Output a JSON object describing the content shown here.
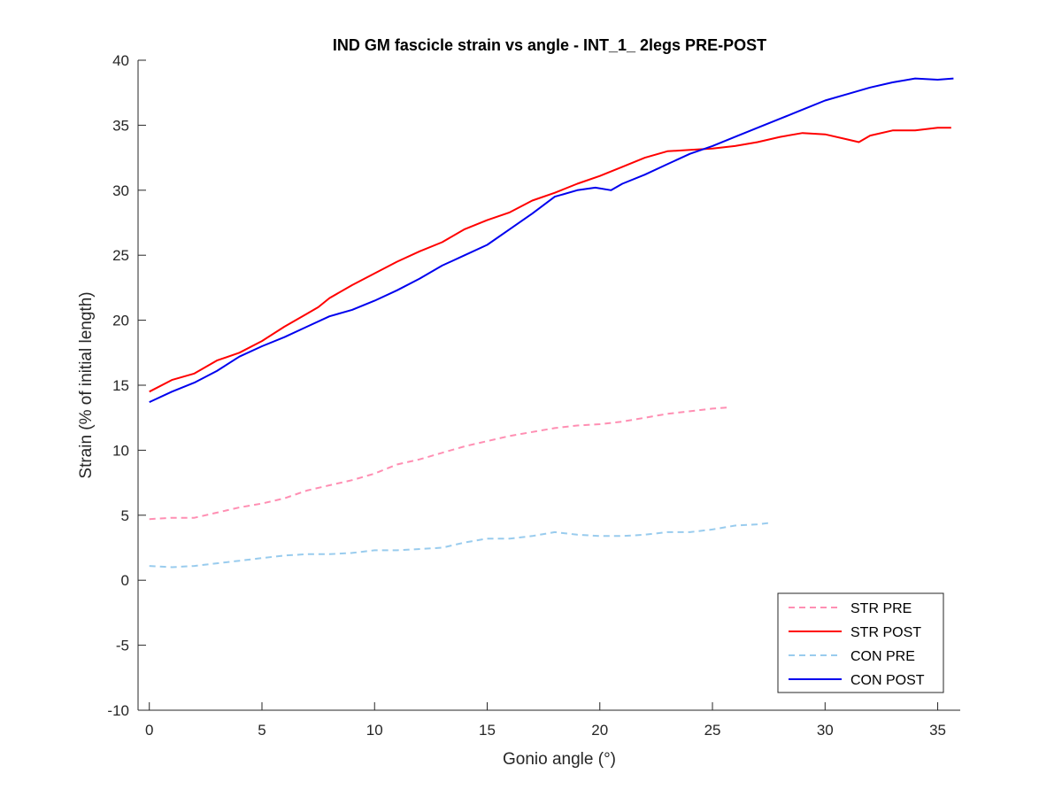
{
  "chart_data": {
    "type": "line",
    "title": "IND GM fascicle strain vs angle - INT_1_ 2legs PRE-POST",
    "xlabel": "Gonio angle (°)",
    "ylabel": "Strain (% of initial length)",
    "xlim": [
      -0.5,
      36
    ],
    "ylim": [
      -10,
      40
    ],
    "xticks": [
      0,
      5,
      10,
      15,
      20,
      25,
      30,
      35
    ],
    "yticks": [
      -10,
      -5,
      0,
      5,
      10,
      15,
      20,
      25,
      30,
      35,
      40
    ],
    "grid": false,
    "legend_position": "bottom-right",
    "series": [
      {
        "name": "STR PRE",
        "color": "#ff8fb3",
        "dash": "dashed",
        "x": [
          0,
          1,
          2,
          3,
          4,
          5,
          6,
          7,
          8,
          9,
          10,
          11,
          12,
          13,
          14,
          15,
          16,
          17,
          18,
          19,
          20,
          21,
          22,
          23,
          24,
          25,
          25.8
        ],
        "y": [
          4.7,
          4.8,
          4.8,
          5.2,
          5.6,
          5.9,
          6.3,
          6.9,
          7.3,
          7.7,
          8.2,
          8.9,
          9.3,
          9.8,
          10.3,
          10.7,
          11.1,
          11.4,
          11.7,
          11.9,
          12.0,
          12.2,
          12.5,
          12.8,
          13.0,
          13.2,
          13.3
        ]
      },
      {
        "name": "STR POST",
        "color": "#ff0000",
        "dash": "solid",
        "x": [
          0,
          1,
          2,
          3,
          4,
          5,
          6,
          7,
          7.5,
          8,
          9,
          10,
          11,
          12,
          13,
          14,
          15,
          16,
          17,
          18,
          19,
          20,
          21,
          22,
          23,
          24,
          25,
          26,
          27,
          28,
          29,
          30,
          31,
          31.5,
          32,
          33,
          34,
          35,
          35.6
        ],
        "y": [
          14.5,
          15.4,
          15.9,
          16.9,
          17.5,
          18.4,
          19.5,
          20.5,
          21.0,
          21.7,
          22.7,
          23.6,
          24.5,
          25.3,
          26.0,
          27.0,
          27.7,
          28.3,
          29.2,
          29.8,
          30.5,
          31.1,
          31.8,
          32.5,
          33.0,
          33.1,
          33.2,
          33.4,
          33.7,
          34.1,
          34.4,
          34.3,
          33.9,
          33.7,
          34.2,
          34.6,
          34.6,
          34.8,
          34.8
        ]
      },
      {
        "name": "CON PRE",
        "color": "#99ccee",
        "dash": "dashed",
        "x": [
          0,
          1,
          2,
          3,
          4,
          5,
          6,
          7,
          8,
          9,
          10,
          11,
          12,
          13,
          14,
          15,
          16,
          17,
          18,
          19,
          20,
          21,
          22,
          23,
          24,
          25,
          26,
          27,
          27.5
        ],
        "y": [
          1.1,
          1.0,
          1.1,
          1.3,
          1.5,
          1.7,
          1.9,
          2.0,
          2.0,
          2.1,
          2.3,
          2.3,
          2.4,
          2.5,
          2.9,
          3.2,
          3.2,
          3.4,
          3.7,
          3.5,
          3.4,
          3.4,
          3.5,
          3.7,
          3.7,
          3.9,
          4.2,
          4.3,
          4.4
        ]
      },
      {
        "name": "CON POST",
        "color": "#0000ee",
        "dash": "solid",
        "x": [
          0,
          1,
          2,
          3,
          4,
          5,
          6,
          7,
          8,
          9,
          10,
          11,
          12,
          13,
          14,
          15,
          16,
          17,
          18,
          19,
          19.8,
          20.5,
          21,
          22,
          23,
          24,
          25,
          26,
          27,
          28,
          29,
          30,
          31,
          32,
          33,
          34,
          35,
          35.7
        ],
        "y": [
          13.7,
          14.5,
          15.2,
          16.1,
          17.2,
          18.0,
          18.7,
          19.5,
          20.3,
          20.8,
          21.5,
          22.3,
          23.2,
          24.2,
          25.0,
          25.8,
          27.0,
          28.2,
          29.5,
          30.0,
          30.2,
          30.0,
          30.5,
          31.2,
          32.0,
          32.8,
          33.4,
          34.1,
          34.8,
          35.5,
          36.2,
          36.9,
          37.4,
          37.9,
          38.3,
          38.6,
          38.5,
          38.6
        ]
      }
    ]
  }
}
